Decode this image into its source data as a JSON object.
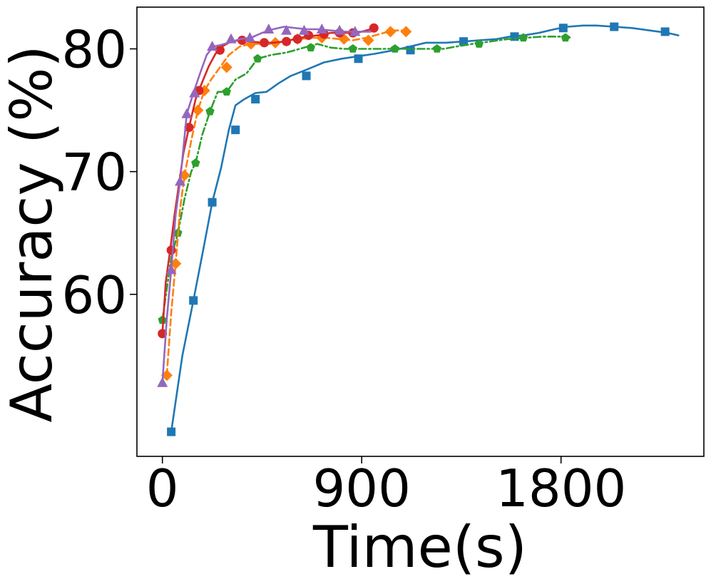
{
  "chart_data": {
    "type": "line",
    "title": "",
    "xlabel": "Time(s)",
    "ylabel": "Accuracy (%)",
    "xlim": [
      -115,
      2445
    ],
    "ylim": [
      46.8,
      83.4
    ],
    "xticks": [
      0,
      900,
      1800
    ],
    "yticks": [
      60,
      70,
      80
    ],
    "grid": false,
    "legend": "none",
    "series": [
      {
        "color": "#1f77b4",
        "marker": "square",
        "dash": "solid",
        "x": [
          40,
          90,
          140,
          185,
          225,
          265,
          300,
          330,
          370,
          420,
          470,
          525,
          580,
          650,
          730,
          810,
          885,
          960,
          1050,
          1120,
          1190,
          1280,
          1360,
          1430,
          1510,
          1570,
          1630,
          1700,
          1770,
          1830,
          1900,
          1960,
          2040,
          2120,
          2200,
          2280,
          2330
        ],
        "y": [
          48.8,
          55.0,
          59.5,
          63.7,
          67.5,
          70.3,
          73.4,
          75.4,
          75.9,
          76.4,
          76.5,
          77.2,
          77.8,
          78.3,
          78.9,
          79.2,
          79.4,
          79.6,
          79.9,
          80.2,
          80.5,
          80.5,
          80.6,
          80.7,
          80.8,
          81.0,
          81.1,
          81.3,
          81.6,
          81.8,
          81.9,
          81.9,
          81.8,
          81.7,
          81.5,
          81.3,
          81.1
        ],
        "markers_x": [
          40,
          140,
          225,
          330,
          420,
          650,
          885,
          1120,
          1360,
          1590,
          1810,
          2040,
          2270
        ],
        "markers_y": [
          48.8,
          59.5,
          67.5,
          73.4,
          75.9,
          77.8,
          79.2,
          79.9,
          80.6,
          81.0,
          81.7,
          81.8,
          81.4
        ]
      },
      {
        "color": "#2ca02c",
        "marker": "pentagon",
        "dash": "dashdot",
        "x": [
          0,
          40,
          70,
          100,
          130,
          150,
          180,
          215,
          250,
          290,
          330,
          380,
          430,
          490,
          560,
          640,
          700,
          760,
          820,
          880,
          940,
          1000,
          1070,
          1140,
          1200,
          1270,
          1330,
          1400,
          1480,
          1560,
          1640,
          1720,
          1800,
          1850
        ],
        "y": [
          57.9,
          63.0,
          65.0,
          67.8,
          70.0,
          70.7,
          73.0,
          74.9,
          76.5,
          76.5,
          77.5,
          78.0,
          79.2,
          79.5,
          79.7,
          80.1,
          80.4,
          80.1,
          80.0,
          80.0,
          80.0,
          80.0,
          80.0,
          80.0,
          80.0,
          80.0,
          80.2,
          80.4,
          80.6,
          80.8,
          80.9,
          81.0,
          81.0,
          80.9
        ],
        "markers_x": [
          0,
          70,
          150,
          215,
          290,
          430,
          670,
          860,
          1050,
          1240,
          1430,
          1630,
          1820
        ],
        "markers_y": [
          57.9,
          65.0,
          70.7,
          74.9,
          76.5,
          79.2,
          80.1,
          80.0,
          80.0,
          80.0,
          80.4,
          80.9,
          80.9
        ]
      },
      {
        "color": "#ff7f0e",
        "marker": "diamond",
        "dash": "dashed",
        "x": [
          20,
          40,
          60,
          80,
          100,
          130,
          160,
          190,
          220,
          260,
          300,
          350,
          400,
          450,
          500,
          560,
          620,
          680,
          740,
          800,
          860,
          920,
          980,
          1040,
          1100
        ],
        "y": [
          53.4,
          58.5,
          62.5,
          67.0,
          69.7,
          72.5,
          75.0,
          76.6,
          77.5,
          78.5,
          79.5,
          80.2,
          80.4,
          80.4,
          80.4,
          80.7,
          80.8,
          80.9,
          80.9,
          80.8,
          80.7,
          80.9,
          81.2,
          81.5,
          81.5
        ],
        "markers_x": [
          20,
          60,
          100,
          160,
          190,
          290,
          400,
          510,
          610,
          720,
          820,
          930,
          1030,
          1100
        ],
        "markers_y": [
          53.4,
          62.5,
          69.7,
          75.0,
          76.6,
          78.5,
          80.4,
          80.5,
          80.8,
          80.9,
          80.8,
          80.7,
          81.4,
          81.4
        ]
      },
      {
        "color": "#d62728",
        "marker": "circle",
        "dash": "solid",
        "x": [
          0,
          15,
          35,
          55,
          75,
          95,
          120,
          150,
          180,
          210,
          240,
          270,
          310,
          350,
          400,
          450,
          500,
          550,
          600,
          650,
          700,
          760,
          820,
          880,
          940,
          960
        ],
        "y": [
          56.8,
          61.0,
          63.6,
          66.5,
          69.0,
          71.5,
          73.6,
          75.9,
          77.3,
          78.6,
          79.6,
          80.2,
          80.6,
          80.7,
          80.6,
          80.5,
          80.5,
          80.6,
          80.8,
          81.0,
          81.1,
          81.3,
          81.3,
          81.3,
          81.6,
          81.7
        ],
        "markers_x": [
          0,
          40,
          120,
          165,
          260,
          360,
          460,
          560,
          610,
          660,
          730,
          800,
          860,
          955
        ],
        "markers_y": [
          56.8,
          63.6,
          73.6,
          76.6,
          79.9,
          80.7,
          80.5,
          80.6,
          80.8,
          81.1,
          81.2,
          81.3,
          81.3,
          81.7
        ]
      },
      {
        "color": "#9467bd",
        "marker": "triangle",
        "dash": "solid",
        "x": [
          0,
          20,
          40,
          60,
          80,
          110,
          140,
          170,
          200,
          230,
          260,
          300,
          350,
          400,
          450,
          500,
          550,
          600,
          650,
          700,
          760,
          820,
          880,
          940
        ],
        "y": [
          52.8,
          58.0,
          62.0,
          66.5,
          69.2,
          74.7,
          76.4,
          78.0,
          79.5,
          80.2,
          80.3,
          80.5,
          80.8,
          80.9,
          81.3,
          81.6,
          81.8,
          81.7,
          81.6,
          81.6,
          81.5,
          81.4,
          81.4,
          81.4
        ],
        "markers_x": [
          0,
          40,
          80,
          110,
          145,
          225,
          310,
          395,
          480,
          560,
          640,
          720,
          800,
          870
        ],
        "markers_y": [
          52.8,
          62.0,
          69.2,
          74.7,
          76.4,
          80.2,
          80.8,
          80.9,
          81.6,
          81.5,
          81.5,
          81.6,
          81.5,
          81.4
        ]
      }
    ]
  }
}
